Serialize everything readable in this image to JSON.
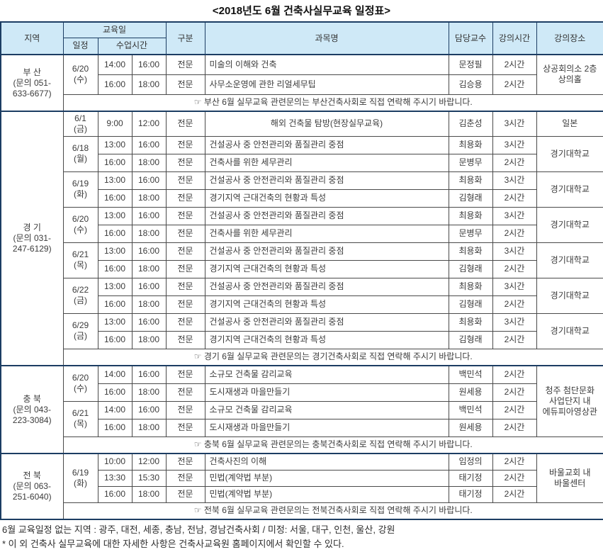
{
  "title": "<2018년도 6월 건축사실무교육 일정표>",
  "colors": {
    "header_bg": "#cfe9f7",
    "border_navy": "#1c3d63",
    "border_gray": "#4a4a4a"
  },
  "header": {
    "region": "지역",
    "edu_day": "교육일",
    "schedule": "일정",
    "class_time": "수업시간",
    "category": "구분",
    "subject": "과목명",
    "professor": "담당교수",
    "lecture_hours": "강의시간",
    "venue": "강의장소"
  },
  "sections": [
    {
      "region": "부 산\n(문의 051-\n633-6677)",
      "note": "☞ 부산 6월 실무교육 관련문의는 부산건축사회로 직접 연락해 주시기 바랍니다.",
      "groups": [
        {
          "date": "6/20\n(수)",
          "venue": "상공회의소 2층\n상의홀",
          "rows": [
            {
              "start": "14:00",
              "end": "16:00",
              "category": "전문",
              "subject": "미술의 이해와 건축",
              "professor": "문정필",
              "hours": "2시간"
            },
            {
              "start": "16:00",
              "end": "18:00",
              "category": "전문",
              "subject": "사무소운영에 관한 리얼세무팁",
              "professor": "김승용",
              "hours": "2시간"
            }
          ]
        }
      ]
    },
    {
      "region": "경 기\n(문의 031-\n247-6129)",
      "note": "☞ 경기 6월 실무교육 관련문의는 경기건축사회로 직접 연락해 주시기 바랍니다.",
      "groups": [
        {
          "date": "6/1\n(금)",
          "venue": "일본",
          "rows": [
            {
              "start": "9:00",
              "end": "12:00",
              "category": "전문",
              "subject": "해외 건축물 탐방(현장실무교육)",
              "subject_align": "center",
              "professor": "김춘성",
              "hours": "3시간"
            }
          ]
        },
        {
          "date": "6/18\n(월)",
          "venue": "경기대학교",
          "rows": [
            {
              "start": "13:00",
              "end": "16:00",
              "category": "전문",
              "subject": "건설공사 중 안전관리와 품질관리 중점",
              "professor": "최용화",
              "hours": "3시간"
            },
            {
              "start": "16:00",
              "end": "18:00",
              "category": "전문",
              "subject": "건축사를 위한 세무관리",
              "professor": "문병무",
              "hours": "2시간"
            }
          ]
        },
        {
          "date": "6/19\n(화)",
          "venue": "경기대학교",
          "rows": [
            {
              "start": "13:00",
              "end": "16:00",
              "category": "전문",
              "subject": "건설공사 중 안전관리와 품질관리 중점",
              "professor": "최용화",
              "hours": "3시간"
            },
            {
              "start": "16:00",
              "end": "18:00",
              "category": "전문",
              "subject": "경기지역 근대건축의 현황과 특성",
              "professor": "김형래",
              "hours": "2시간"
            }
          ]
        },
        {
          "date": "6/20\n(수)",
          "venue": "경기대학교",
          "rows": [
            {
              "start": "13:00",
              "end": "16:00",
              "category": "전문",
              "subject": "건설공사 중 안전관리와 품질관리 중점",
              "professor": "최용화",
              "hours": "3시간"
            },
            {
              "start": "16:00",
              "end": "18:00",
              "category": "전문",
              "subject": "건축사를 위한 세무관리",
              "professor": "문병무",
              "hours": "2시간"
            }
          ]
        },
        {
          "date": "6/21\n(목)",
          "venue": "경기대학교",
          "rows": [
            {
              "start": "13:00",
              "end": "16:00",
              "category": "전문",
              "subject": "건설공사 중 안전관리와 품질관리 중점",
              "professor": "최용화",
              "hours": "3시간"
            },
            {
              "start": "16:00",
              "end": "18:00",
              "category": "전문",
              "subject": "경기지역 근대건축의 현황과 특성",
              "professor": "김형래",
              "hours": "2시간"
            }
          ]
        },
        {
          "date": "6/22\n(금)",
          "venue": "경기대학교",
          "rows": [
            {
              "start": "13:00",
              "end": "16:00",
              "category": "전문",
              "subject": "건설공사 중 안전관리와 품질관리 중점",
              "professor": "최용화",
              "hours": "3시간"
            },
            {
              "start": "16:00",
              "end": "18:00",
              "category": "전문",
              "subject": "경기지역 근대건축의 현황과 특성",
              "professor": "김형래",
              "hours": "2시간"
            }
          ]
        },
        {
          "date": "6/29\n(금)",
          "venue": "경기대학교",
          "rows": [
            {
              "start": "13:00",
              "end": "16:00",
              "category": "전문",
              "subject": "건설공사 중 안전관리와 품질관리 중점",
              "professor": "최용화",
              "hours": "3시간"
            },
            {
              "start": "16:00",
              "end": "18:00",
              "category": "전문",
              "subject": "경기지역 근대건축의 현황과 특성",
              "professor": "김형래",
              "hours": "2시간"
            }
          ]
        }
      ]
    },
    {
      "region": "충 북\n(문의 043-\n223-3084)",
      "note": "☞ 충북 6월 실무교육 관련문의는 충북건축사회로 직접 연락해 주시기 바랍니다.",
      "groups": [
        {
          "date": "6/20\n(수)",
          "venue": "청주 첨단문화\n사업단지 내\n에듀피아영상관",
          "venue_rowspan": 4,
          "rows": [
            {
              "start": "14:00",
              "end": "16:00",
              "category": "전문",
              "subject": "소규모 건축물 감리교육",
              "professor": "백민석",
              "hours": "2시간"
            },
            {
              "start": "16:00",
              "end": "18:00",
              "category": "전문",
              "subject": "도시재생과 마을만들기",
              "professor": "원세용",
              "hours": "2시간"
            }
          ]
        },
        {
          "date": "6/21\n(목)",
          "rows": [
            {
              "start": "14:00",
              "end": "16:00",
              "category": "전문",
              "subject": "소규모 건축물 감리교육",
              "professor": "백민석",
              "hours": "2시간"
            },
            {
              "start": "16:00",
              "end": "18:00",
              "category": "전문",
              "subject": "도시재생과 마을만들기",
              "professor": "원세용",
              "hours": "2시간"
            }
          ]
        }
      ]
    },
    {
      "region": "전 북\n(문의 063-\n251-6040)",
      "note": "☞ 전북 6월 실무교육 관련문의는 전북건축사회로 직접 연락해 주시기 바랍니다.",
      "groups": [
        {
          "date": "6/19\n(화)",
          "venue": "바울교회 내\n바울센터",
          "rows": [
            {
              "start": "10:00",
              "end": "12:00",
              "category": "전문",
              "subject": "건축사진의 이해",
              "professor": "임정의",
              "hours": "2시간"
            },
            {
              "start": "13:30",
              "end": "15:30",
              "category": "전문",
              "subject": "민법(계약법 부분)",
              "professor": "태기정",
              "hours": "2시간"
            },
            {
              "start": "16:00",
              "end": "18:00",
              "category": "전문",
              "subject": "민법(계약법 부분)",
              "professor": "태기정",
              "hours": "2시간"
            }
          ]
        }
      ]
    }
  ],
  "footer": {
    "line1": "6월 교육일정 없는 지역 : 광주, 대전, 세종, 충남, 전남, 경남건축사회 / 미정: 서울, 대구, 인천, 울산, 강원",
    "line2": "* 이 외 건축사 실무교육에 대한 자세한 사항은 건축사교육원 홈페이지에서 확인할 수 있다."
  }
}
